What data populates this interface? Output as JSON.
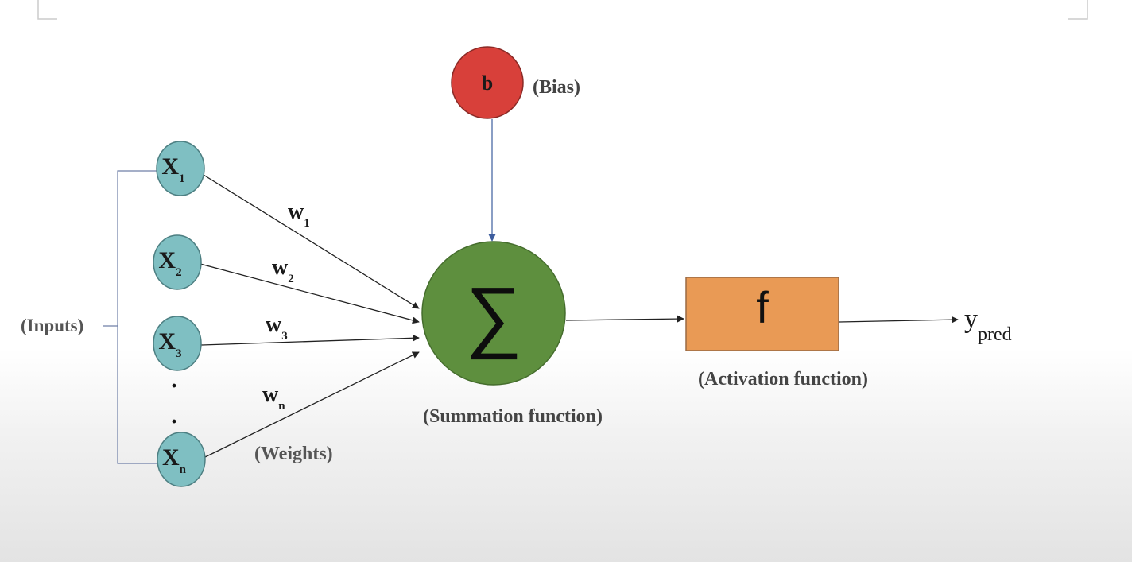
{
  "colors": {
    "input_node": "#7fbfc2",
    "input_stroke": "#4d7f82",
    "bias_node": "#d8403a",
    "bias_stroke": "#8a2a26",
    "sum_node": "#5e8f3e",
    "sum_stroke": "#456d2d",
    "activation_box": "#e99a55",
    "activation_stroke": "#9a6a44",
    "text": "#333333",
    "arrow": "#222222",
    "bias_arrow": "#3d5d9e"
  },
  "bias": {
    "symbol": "b",
    "label": "(Bias)"
  },
  "inputs": {
    "label": "(Inputs)",
    "nodes": [
      {
        "base": "X",
        "sub": "1"
      },
      {
        "base": "X",
        "sub": "2"
      },
      {
        "base": "X",
        "sub": "3"
      },
      {
        "base": "X",
        "sub": "n"
      }
    ],
    "ellipsis": [
      "·",
      "·"
    ]
  },
  "weights": {
    "label": "(Weights)",
    "items": [
      {
        "base": "w",
        "sub": "1"
      },
      {
        "base": "w",
        "sub": "2"
      },
      {
        "base": "w",
        "sub": "3"
      },
      {
        "base": "w",
        "sub": "n"
      }
    ]
  },
  "summation": {
    "symbol": "∑",
    "label": "(Summation function)"
  },
  "activation": {
    "symbol": "f",
    "label": "(Activation function)"
  },
  "output": {
    "base": "y",
    "sub": "pred"
  }
}
